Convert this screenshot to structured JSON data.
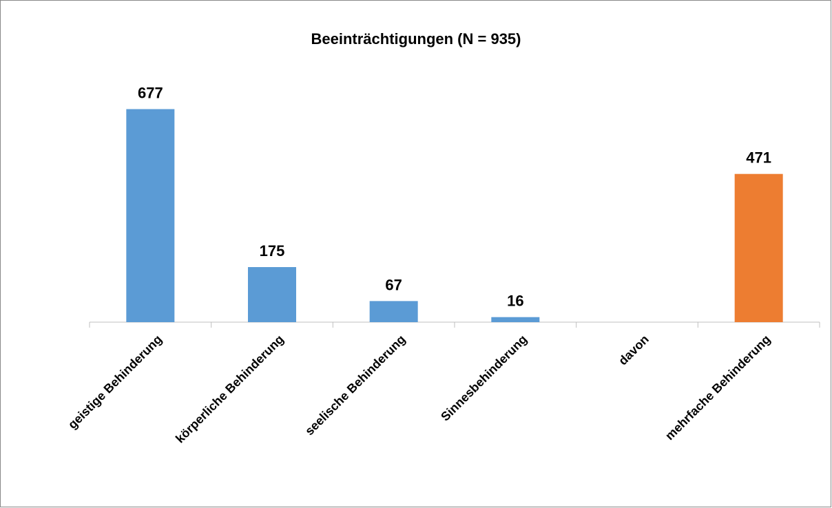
{
  "chart_data": {
    "type": "bar",
    "title": "Beeinträchtigungen (N = 935)",
    "categories": [
      "geistige Behinderung",
      "körperliche Behinderung",
      "seelische Behinderung",
      "Sinnesbehinderung",
      "davon",
      "mehrfache Behinderung"
    ],
    "values": [
      677,
      175,
      67,
      16,
      null,
      471
    ],
    "colors": [
      "#5b9bd5",
      "#5b9bd5",
      "#5b9bd5",
      "#5b9bd5",
      "#5b9bd5",
      "#ed7d31"
    ],
    "ylim": [
      0,
      700
    ]
  }
}
